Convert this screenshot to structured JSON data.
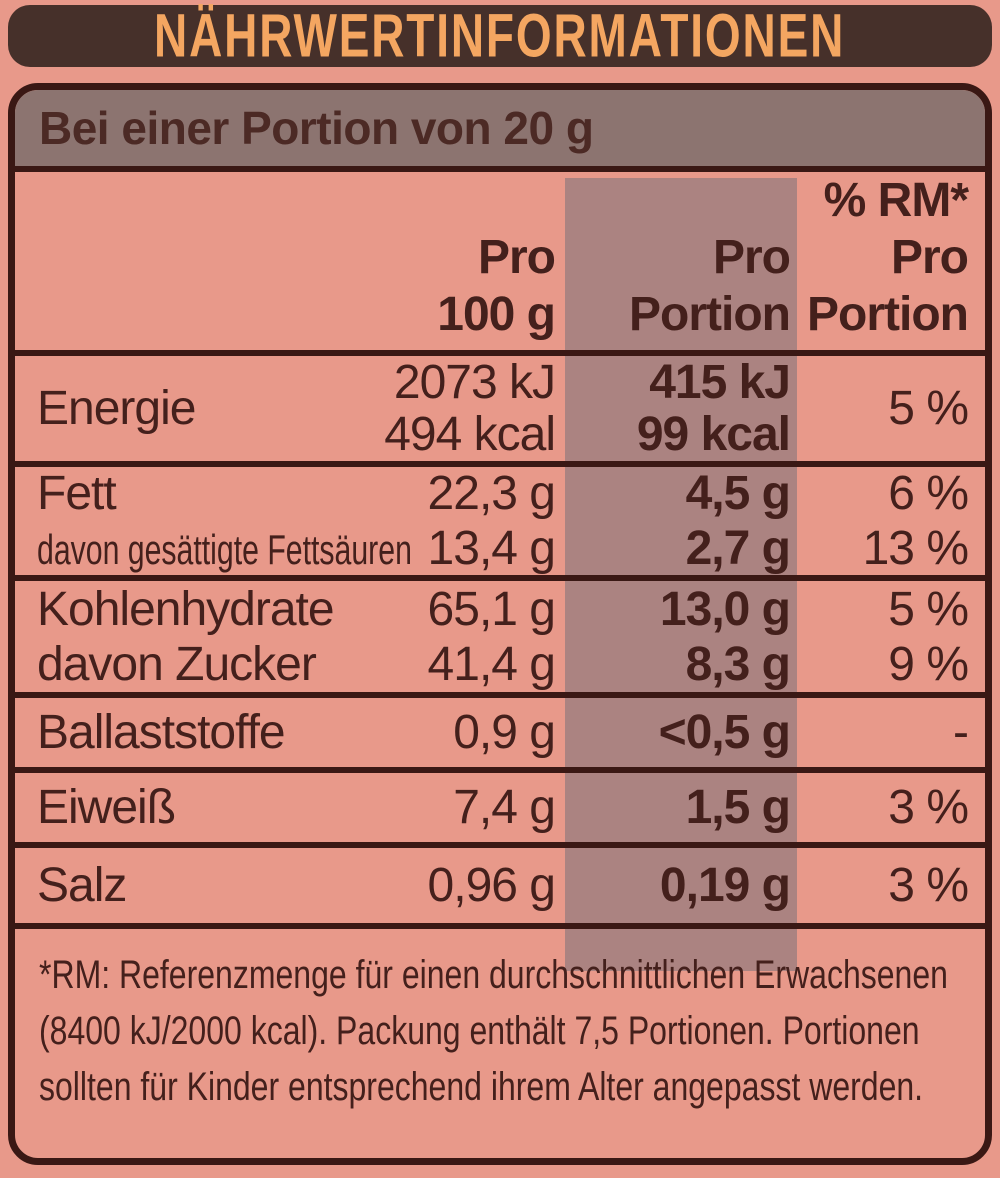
{
  "title": "NÄHRWERTINFORMATIONEN",
  "colors": {
    "background": "#E8998A",
    "panel-border": "#3A1814",
    "title-bar-bg": "#46302A",
    "title-text": "#F4A661",
    "header-bg": "#8C7470",
    "highlight-column": "#AB8381",
    "text": "#44201C"
  },
  "table": {
    "serving_header": "Bei einer Portion von 20 g",
    "columns": {
      "per_100g": [
        "Pro",
        "100 g"
      ],
      "per_portion": [
        "Pro",
        "Portion"
      ],
      "rm_per_portion": [
        "% RM*",
        "Pro",
        "Portion"
      ]
    },
    "rows": [
      {
        "label": "Energie",
        "per100_l1": "2073 kJ",
        "per100_l2": "494 kcal",
        "portion_l1": "415 kJ",
        "portion_l2": "99 kcal",
        "rm": "5 %"
      },
      {
        "label": "Fett",
        "per100": "22,3 g",
        "portion": "4,5 g",
        "rm": "6 %"
      },
      {
        "label": "davon gesättigte Fettsäuren",
        "per100": "13,4 g",
        "portion": "2,7 g",
        "rm": "13 %"
      },
      {
        "label": "Kohlenhydrate",
        "per100": "65,1 g",
        "portion": "13,0 g",
        "rm": "5 %"
      },
      {
        "label": "davon Zucker",
        "per100": "41,4 g",
        "portion": "8,3 g",
        "rm": "9 %"
      },
      {
        "label": "Ballaststoffe",
        "per100": "0,9 g",
        "portion": "<0,5 g",
        "rm": "-"
      },
      {
        "label": "Eiweiß",
        "per100": "7,4 g",
        "portion": "1,5 g",
        "rm": "3 %"
      },
      {
        "label": "Salz",
        "per100": "0,96 g",
        "portion": "0,19 g",
        "rm": "3 %"
      }
    ],
    "footnote": [
      "*RM: Referenzmenge für einen durchschnittlichen Erwachsenen",
      "(8400 kJ/2000 kcal). Packung enthält 7,5 Portionen. Portionen",
      "sollten für Kinder entsprechend ihrem Alter angepasst werden."
    ]
  }
}
